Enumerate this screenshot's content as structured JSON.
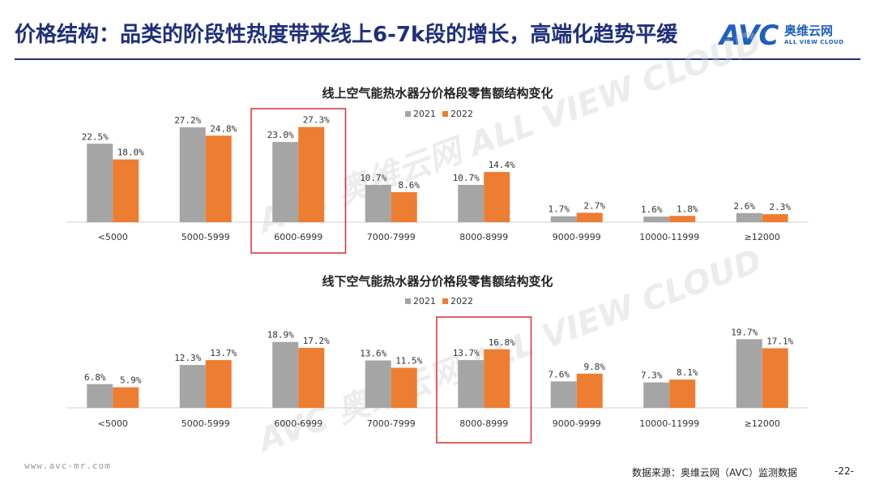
{
  "page": {
    "title": "价格结构：品类的阶段性热度带来线上6-7k段的增长，高端化趋势平缓",
    "logo": {
      "mark": "AVC",
      "name_cn": "奥维云网",
      "name_en": "ALL VIEW CLOUD"
    },
    "footer_url": "www.avc-mr.com",
    "source": "数据来源：奥维云网（AVC）监测数据",
    "page_number": "-22-",
    "watermark": "AVC 奥维云网 ALL VIEW CLOUD"
  },
  "colors": {
    "series2021": "#a5a5a5",
    "series2022": "#ed7d31",
    "highlight": "#d9302f",
    "title": "#1f2f7a"
  },
  "chart_data": [
    {
      "type": "bar",
      "title": "线上空气能热水器分价格段零售额结构变化",
      "categories": [
        "<5000",
        "5000-5999",
        "6000-6999",
        "7000-7999",
        "8000-8999",
        "9000-9999",
        "10000-11999",
        "≥12000"
      ],
      "series": [
        {
          "name": "2021",
          "values": [
            22.5,
            27.2,
            23.0,
            10.7,
            10.7,
            1.7,
            1.6,
            2.6
          ],
          "labels": [
            "22.5%",
            "27.2%",
            "23.0%",
            "10.7%",
            "10.7%",
            "1.7%",
            "1.6%",
            "2.6%"
          ]
        },
        {
          "name": "2022",
          "values": [
            18.0,
            24.8,
            27.3,
            8.6,
            14.4,
            2.7,
            1.8,
            2.3
          ],
          "labels": [
            "18.0%",
            "24.8%",
            "27.3%",
            "8.6%",
            "14.4%",
            "2.7%",
            "1.8%",
            "2.3%"
          ]
        }
      ],
      "highlight_category": "6000-6999",
      "unit": "%",
      "legend": "top-center"
    },
    {
      "type": "bar",
      "title": "线下空气能热水器分价格段零售额结构变化",
      "categories": [
        "<5000",
        "5000-5999",
        "6000-6999",
        "7000-7999",
        "8000-8999",
        "9000-9999",
        "10000-11999",
        "≥12000"
      ],
      "series": [
        {
          "name": "2021",
          "values": [
            6.8,
            12.3,
            18.9,
            13.6,
            13.7,
            7.6,
            7.3,
            19.7
          ],
          "labels": [
            "6.8%",
            "12.3%",
            "18.9%",
            "13.6%",
            "13.7%",
            "7.6%",
            "7.3%",
            "19.7%"
          ]
        },
        {
          "name": "2022",
          "values": [
            5.9,
            13.7,
            17.2,
            11.5,
            16.8,
            9.8,
            8.1,
            17.1
          ],
          "labels": [
            "5.9%",
            "13.7%",
            "17.2%",
            "11.5%",
            "16.8%",
            "9.8%",
            "8.1%",
            "17.1%"
          ]
        }
      ],
      "highlight_category": "8000-8999",
      "unit": "%",
      "legend": "top-center"
    }
  ]
}
